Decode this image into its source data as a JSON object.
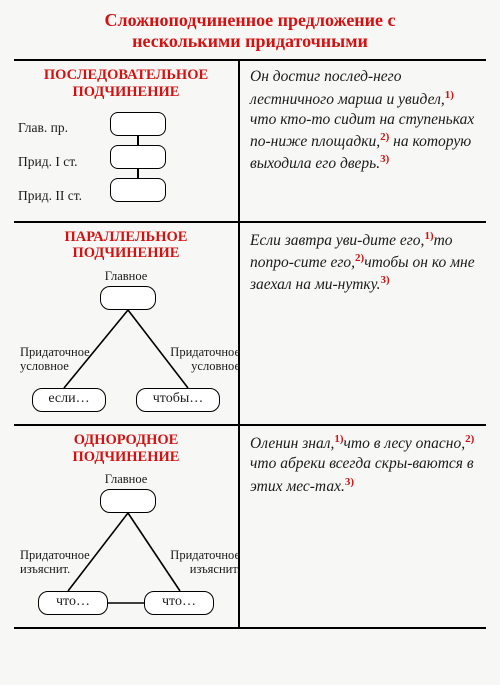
{
  "title_line1": "Сложноподчиненное предложение с",
  "title_line2": "несколькими придаточными",
  "row1": {
    "heading_l1": "ПОСЛЕДОВАТЕЛЬНОЕ",
    "heading_l2": "ПОДЧИНЕНИЕ",
    "lbl_glav": "Глав. пр.",
    "lbl_p1": "Прид. I ст.",
    "lbl_p2": "Прид. II ст.",
    "text": "Он достиг послед-него лестничного марша и увидел,|1)| что кто-то сидит на ступеньках по-ниже площадки,|2)| на которую выходила его дверь.|3)|"
  },
  "row2": {
    "heading_l1": "ПАРАЛЛЕЛЬНОЕ",
    "heading_l2": "ПОДЧИНЕНИЕ",
    "top_label": "Главное",
    "left_label": "Придаточное\nусловное",
    "right_label": "Придаточное\nусловное",
    "left_word": "если…",
    "right_word": "чтобы…",
    "text": "Если завтра уви-дите его,|1)|то попро-сите его,|2)|чтобы он ко мне заехал на ми-нутку.|3)|"
  },
  "row3": {
    "heading_l1": "ОДНОРОДНОЕ",
    "heading_l2": "ПОДЧИНЕНИЕ",
    "top_label": "Главное",
    "left_label": "Придаточное\nизъяснит.",
    "right_label": "Придаточное\nизъяснит.",
    "left_word": "что…",
    "right_word": "что…",
    "text": "Оленин знал,|1)|что в лесу опасно,|2)| что абреки всегда скры-ваются в этих мес-тах.|3)|",
    "connect_boxes": true
  },
  "colors": {
    "accent": "#d41010",
    "border": "#000000",
    "bg": "#f7f7f5"
  }
}
